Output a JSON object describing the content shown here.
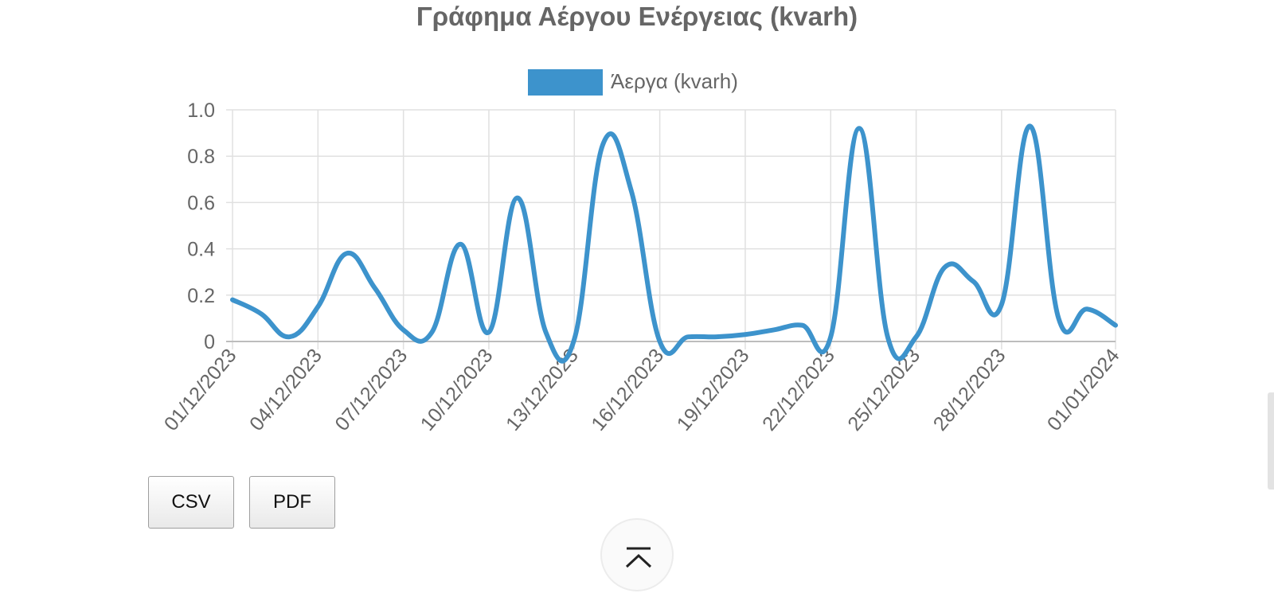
{
  "chart_data": {
    "type": "line",
    "title": "Γράφημα Αέργου Ενέργειας (kvarh)",
    "series": [
      {
        "name": "Άεργα (kvarh)",
        "color": "#3d93cc",
        "values": [
          {
            "x": "01/12/2023",
            "y": 0.18
          },
          {
            "x": "02/12/2023",
            "y": 0.12
          },
          {
            "x": "03/12/2023",
            "y": 0.02
          },
          {
            "x": "04/12/2023",
            "y": 0.15
          },
          {
            "x": "05/12/2023",
            "y": 0.38
          },
          {
            "x": "06/12/2023",
            "y": 0.23
          },
          {
            "x": "07/12/2023",
            "y": 0.05
          },
          {
            "x": "08/12/2023",
            "y": 0.04
          },
          {
            "x": "09/12/2023",
            "y": 0.42
          },
          {
            "x": "10/12/2023",
            "y": 0.04
          },
          {
            "x": "11/12/2023",
            "y": 0.62
          },
          {
            "x": "12/12/2023",
            "y": 0.04
          },
          {
            "x": "13/12/2023",
            "y": 0.01
          },
          {
            "x": "14/12/2023",
            "y": 0.85
          },
          {
            "x": "15/12/2023",
            "y": 0.65
          },
          {
            "x": "16/12/2023",
            "y": 0.0
          },
          {
            "x": "17/12/2023",
            "y": 0.02
          },
          {
            "x": "18/12/2023",
            "y": 0.02
          },
          {
            "x": "19/12/2023",
            "y": 0.03
          },
          {
            "x": "20/12/2023",
            "y": 0.05
          },
          {
            "x": "21/12/2023",
            "y": 0.07
          },
          {
            "x": "22/12/2023",
            "y": 0.02
          },
          {
            "x": "23/12/2023",
            "y": 0.92
          },
          {
            "x": "24/12/2023",
            "y": 0.02
          },
          {
            "x": "25/12/2023",
            "y": 0.02
          },
          {
            "x": "26/12/2023",
            "y": 0.32
          },
          {
            "x": "27/12/2023",
            "y": 0.26
          },
          {
            "x": "28/12/2023",
            "y": 0.16
          },
          {
            "x": "29/12/2023",
            "y": 0.93
          },
          {
            "x": "30/12/2023",
            "y": 0.1
          },
          {
            "x": "31/12/2023",
            "y": 0.14
          },
          {
            "x": "01/01/2024",
            "y": 0.07
          }
        ]
      }
    ],
    "x_tick_labels": [
      "01/12/2023",
      "04/12/2023",
      "07/12/2023",
      "10/12/2023",
      "13/12/2023",
      "16/12/2023",
      "19/12/2023",
      "22/12/2023",
      "25/12/2023",
      "28/12/2023",
      "01/01/2024"
    ],
    "y_ticks": [
      0,
      0.2,
      0.4,
      0.6,
      0.8,
      1.0
    ],
    "y_tick_labels": [
      "0",
      "0.2",
      "0.4",
      "0.6",
      "0.8",
      "1.0"
    ],
    "ylim": [
      0,
      1.0
    ],
    "grid": true,
    "legend": "top-center"
  },
  "buttons": {
    "csv": "CSV",
    "pdf": "PDF"
  },
  "scroll_top_icon": "chevron-up-icon"
}
